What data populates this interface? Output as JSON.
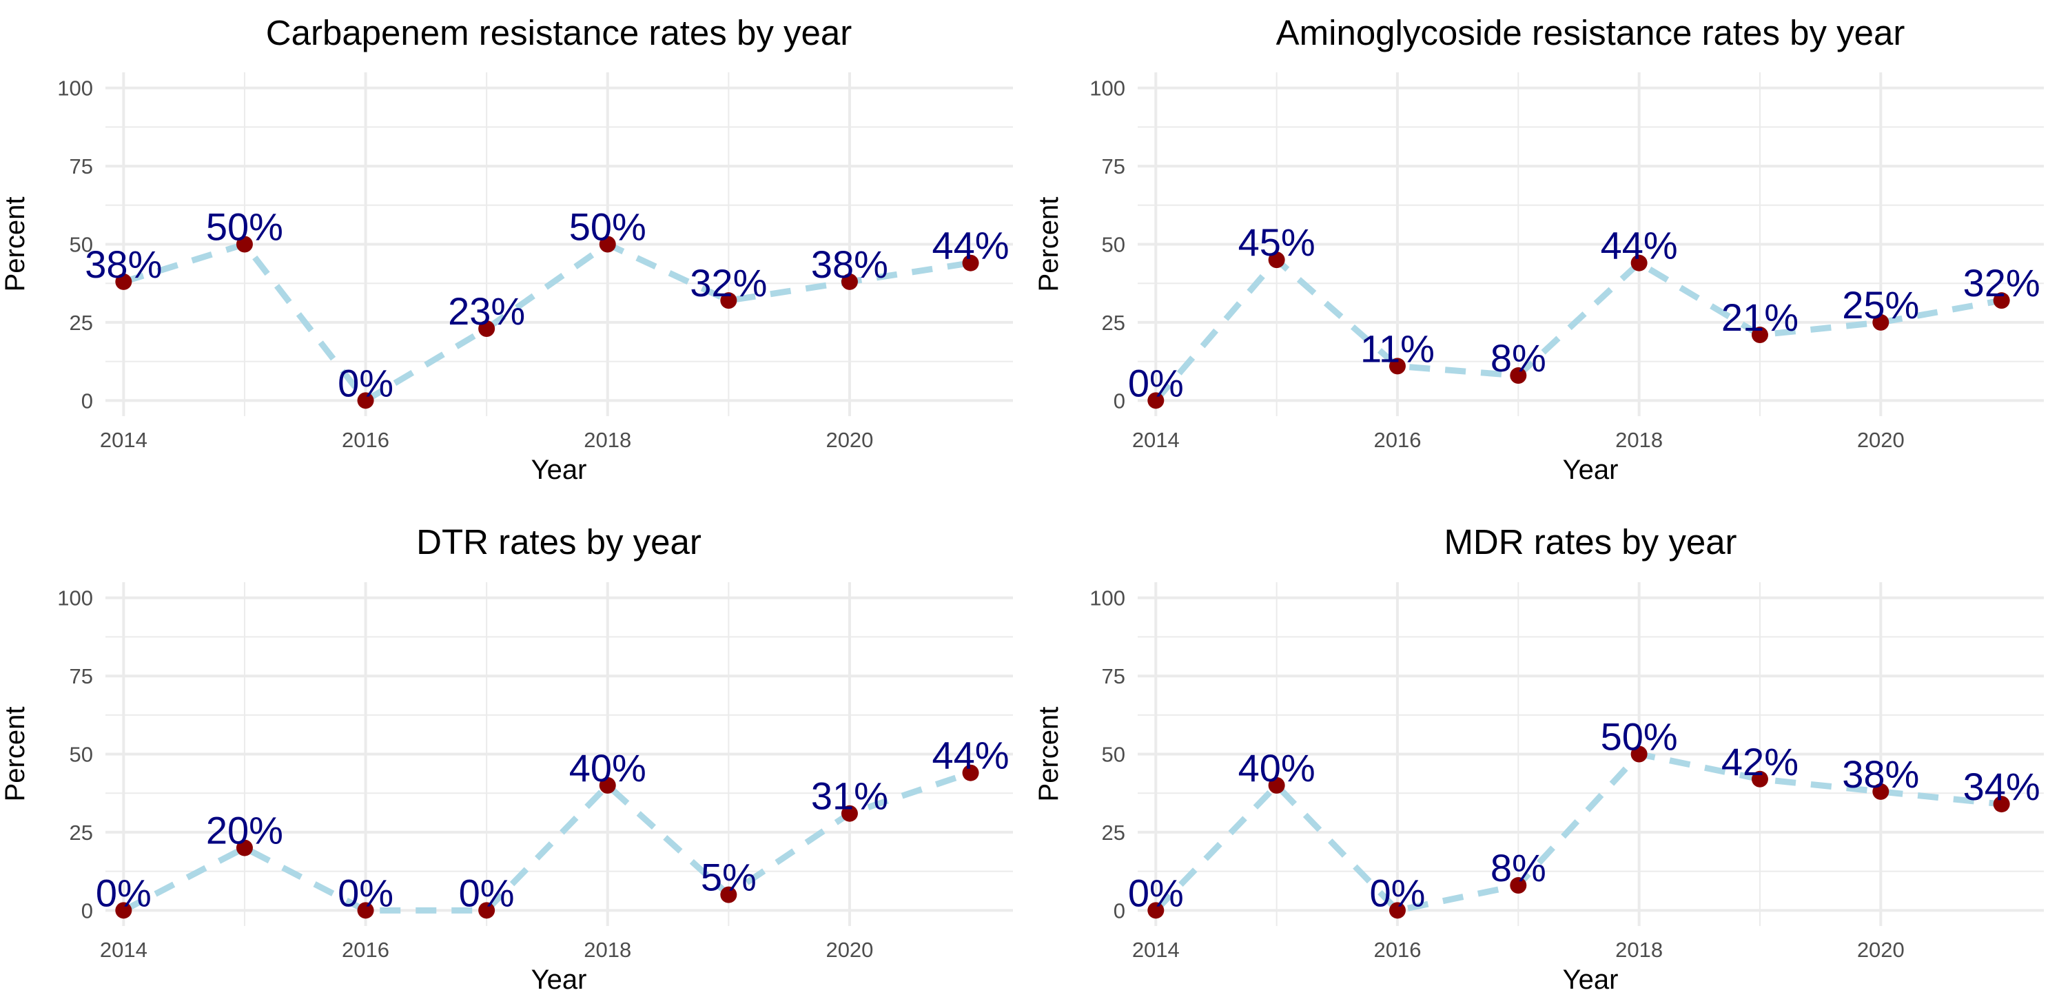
{
  "chart_data": [
    {
      "type": "line",
      "title": "Carbapenem resistance rates by year",
      "xlabel": "Year",
      "ylabel": "Percent",
      "x": [
        2014,
        2015,
        2016,
        2017,
        2018,
        2019,
        2020,
        2021
      ],
      "values": [
        38,
        50,
        0,
        23,
        50,
        32,
        38,
        44
      ],
      "labels": [
        "38%",
        "50%",
        "0%",
        "23%",
        "50%",
        "32%",
        "38%",
        "44%"
      ],
      "xticks": [
        2014,
        2016,
        2018,
        2020
      ],
      "xtick_labels": [
        "2014",
        "2016",
        "2018",
        "2020"
      ],
      "yticks": [
        0,
        25,
        50,
        75,
        100
      ],
      "ytick_labels": [
        "0",
        "25",
        "50",
        "75",
        "100"
      ],
      "xlim": [
        2013.85,
        2021.35
      ],
      "ylim": [
        -5,
        105
      ]
    },
    {
      "type": "line",
      "title": "Aminoglycoside resistance rates by year",
      "xlabel": "Year",
      "ylabel": "Percent",
      "x": [
        2014,
        2015,
        2016,
        2017,
        2018,
        2019,
        2020,
        2021
      ],
      "values": [
        0,
        45,
        11,
        8,
        44,
        21,
        25,
        32
      ],
      "labels": [
        "0%",
        "45%",
        "11%",
        "8%",
        "44%",
        "21%",
        "25%",
        "32%"
      ],
      "xticks": [
        2014,
        2016,
        2018,
        2020
      ],
      "xtick_labels": [
        "2014",
        "2016",
        "2018",
        "2020"
      ],
      "yticks": [
        0,
        25,
        50,
        75,
        100
      ],
      "ytick_labels": [
        "0",
        "25",
        "50",
        "75",
        "100"
      ],
      "xlim": [
        2013.85,
        2021.35
      ],
      "ylim": [
        -5,
        105
      ]
    },
    {
      "type": "line",
      "title": "DTR rates by year",
      "xlabel": "Year",
      "ylabel": "Percent",
      "x": [
        2014,
        2015,
        2016,
        2017,
        2018,
        2019,
        2020,
        2021
      ],
      "values": [
        0,
        20,
        0,
        0,
        40,
        5,
        31,
        44
      ],
      "labels": [
        "0%",
        "20%",
        "0%",
        "0%",
        "40%",
        "5%",
        "31%",
        "44%"
      ],
      "xticks": [
        2014,
        2016,
        2018,
        2020
      ],
      "xtick_labels": [
        "2014",
        "2016",
        "2018",
        "2020"
      ],
      "yticks": [
        0,
        25,
        50,
        75,
        100
      ],
      "ytick_labels": [
        "0",
        "25",
        "50",
        "75",
        "100"
      ],
      "xlim": [
        2013.85,
        2021.35
      ],
      "ylim": [
        -5,
        105
      ]
    },
    {
      "type": "line",
      "title": "MDR rates by year",
      "xlabel": "Year",
      "ylabel": "Percent",
      "x": [
        2014,
        2015,
        2016,
        2017,
        2018,
        2019,
        2020,
        2021
      ],
      "values": [
        0,
        40,
        0,
        8,
        50,
        42,
        38,
        34
      ],
      "labels": [
        "0%",
        "40%",
        "0%",
        "8%",
        "50%",
        "42%",
        "38%",
        "34%"
      ],
      "xticks": [
        2014,
        2016,
        2018,
        2020
      ],
      "xtick_labels": [
        "2014",
        "2016",
        "2018",
        "2020"
      ],
      "yticks": [
        0,
        25,
        50,
        75,
        100
      ],
      "ytick_labels": [
        "0",
        "25",
        "50",
        "75",
        "100"
      ],
      "xlim": [
        2013.85,
        2021.35
      ],
      "ylim": [
        -5,
        105
      ]
    }
  ],
  "colors": {
    "line": "#ADD8E6",
    "point": "#8B0000",
    "label": "#000080",
    "grid": "#EBEBEB",
    "axis_text": "#4D4D4D",
    "title_text": "#000000"
  }
}
